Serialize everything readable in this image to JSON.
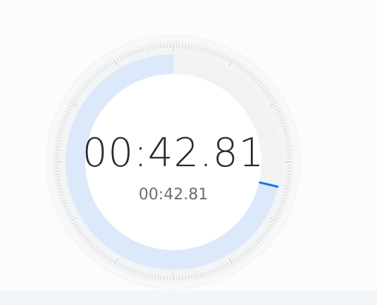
{
  "stopwatch": {
    "elapsed_main": "00:42.81",
    "elapsed_sub": "00:42.81",
    "progress_fraction": 0.713
  },
  "colors": {
    "accent": "#1a73e8",
    "progress_fill": "#dce9fb",
    "ring_bg": "#f5f6f7",
    "tick": "#c8c8c8"
  }
}
